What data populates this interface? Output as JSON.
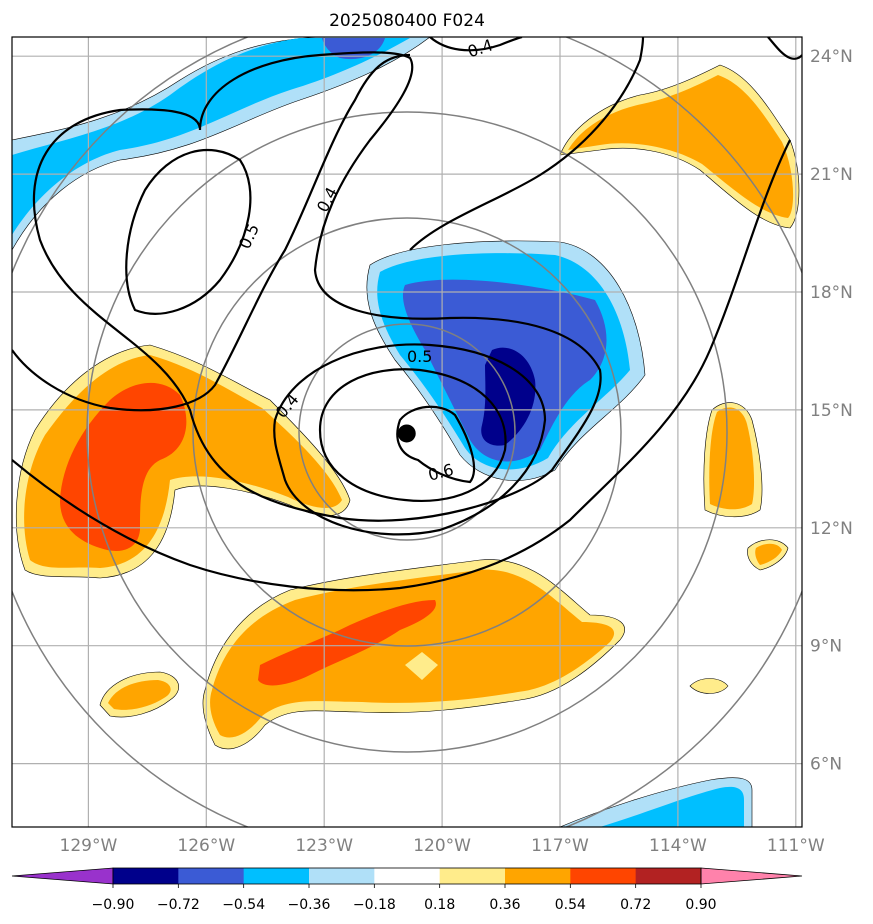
{
  "title": "2025080400 F024",
  "lat_labels": [
    "24°N",
    "21°N",
    "18°N",
    "15°N",
    "12°N",
    "9°N",
    "6°N"
  ],
  "lon_labels": [
    "129°W",
    "126°W",
    "123°W",
    "120°W",
    "117°W",
    "114°W",
    "111°W"
  ],
  "contour_labels": [
    "0.4",
    "0.4",
    "0.5",
    "0.4",
    "0.5",
    "0.6"
  ],
  "colorbar": {
    "ticks": [
      "−0.90",
      "−0.72",
      "−0.54",
      "−0.36",
      "−0.18",
      "0.18",
      "0.36",
      "0.54",
      "0.72",
      "0.90"
    ],
    "colors": [
      "#9932cc",
      "#00008b",
      "#3b5bd5",
      "#00bfff",
      "#b0e0f8",
      "#ffffff",
      "#ffec8b",
      "#ffa500",
      "#ff4500",
      "#b22222",
      "#ff82ab"
    ]
  },
  "colors": {
    "dark_blue": "#00008b",
    "royal_blue": "#3b5bd5",
    "sky_blue": "#00bfff",
    "light_blue": "#b0e0f8",
    "light_yellow": "#ffec8b",
    "orange": "#ffa500",
    "orange_red": "#ff4500",
    "grid": "#b0b0b0",
    "range_ring": "#808080",
    "contour": "#000000"
  },
  "storm_center": {
    "lon": -120.9,
    "lat": 14.4
  }
}
